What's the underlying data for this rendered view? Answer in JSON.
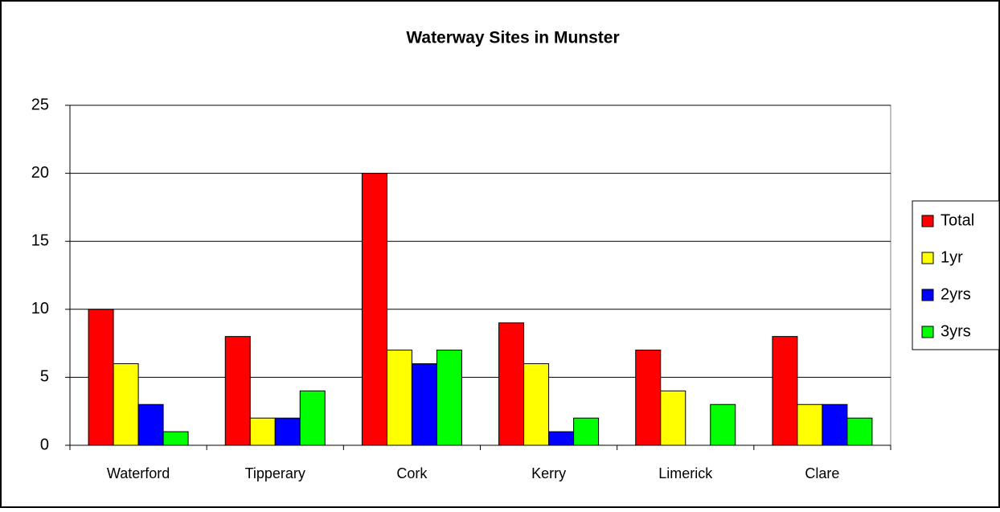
{
  "chart_data": {
    "type": "bar",
    "title": "Waterway Sites in Munster",
    "categories": [
      "Waterford",
      "Tipperary",
      "Cork",
      "Kerry",
      "Limerick",
      "Clare"
    ],
    "series": [
      {
        "name": "Total",
        "color": "#ff0000",
        "values": [
          10,
          8,
          20,
          9,
          7,
          8
        ]
      },
      {
        "name": "1yr",
        "color": "#ffff00",
        "values": [
          6,
          2,
          7,
          6,
          4,
          3
        ]
      },
      {
        "name": "2yrs",
        "color": "#0000ff",
        "values": [
          3,
          2,
          6,
          1,
          0,
          3
        ]
      },
      {
        "name": "3yrs",
        "color": "#00ff00",
        "values": [
          1,
          4,
          7,
          2,
          3,
          2
        ]
      }
    ],
    "ylim": [
      0,
      25
    ],
    "yticks": [
      0,
      5,
      10,
      15,
      20,
      25
    ],
    "grid": true,
    "legend": "right"
  }
}
